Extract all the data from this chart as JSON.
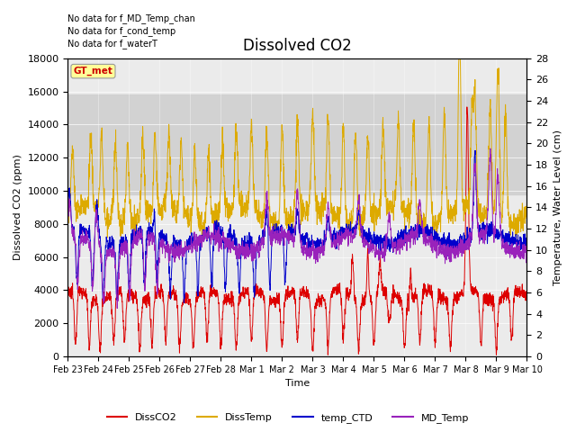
{
  "title": "Dissolved CO2",
  "xlabel": "Time",
  "ylabel_left": "Dissolved CO2 (ppm)",
  "ylabel_right": "Temperature, Water Level (cm)",
  "ylim_left": [
    0,
    18000
  ],
  "ylim_right": [
    0,
    28
  ],
  "annotations": [
    "No data for f_MD_Temp_chan",
    "No data for f_cond_temp",
    "No data for f_waterT"
  ],
  "gt_met_label": "GT_met",
  "legend_labels": [
    "DissCO2",
    "DissTemp",
    "temp_CTD",
    "MD_Temp"
  ],
  "line_colors": {
    "DissCO2": "#dd0000",
    "DissTemp": "#ddaa00",
    "temp_CTD": "#0000cc",
    "MD_Temp": "#9922bb"
  },
  "shaded_band_lo": 9800,
  "shaded_band_hi": 15800,
  "background_color": "#ffffff",
  "plot_bg_color": "#ebebeb",
  "xtick_labels": [
    "Feb 23",
    "Feb 24",
    "Feb 25",
    "Feb 26",
    "Feb 27",
    "Feb 28",
    "Mar 1",
    "Mar 2",
    "Mar 3",
    "Mar 4",
    "Mar 5",
    "Mar 6",
    "Mar 7",
    "Mar 8",
    "Mar 9",
    "Mar 10"
  ],
  "title_fontsize": 12,
  "label_fontsize": 8,
  "tick_fontsize": 8
}
